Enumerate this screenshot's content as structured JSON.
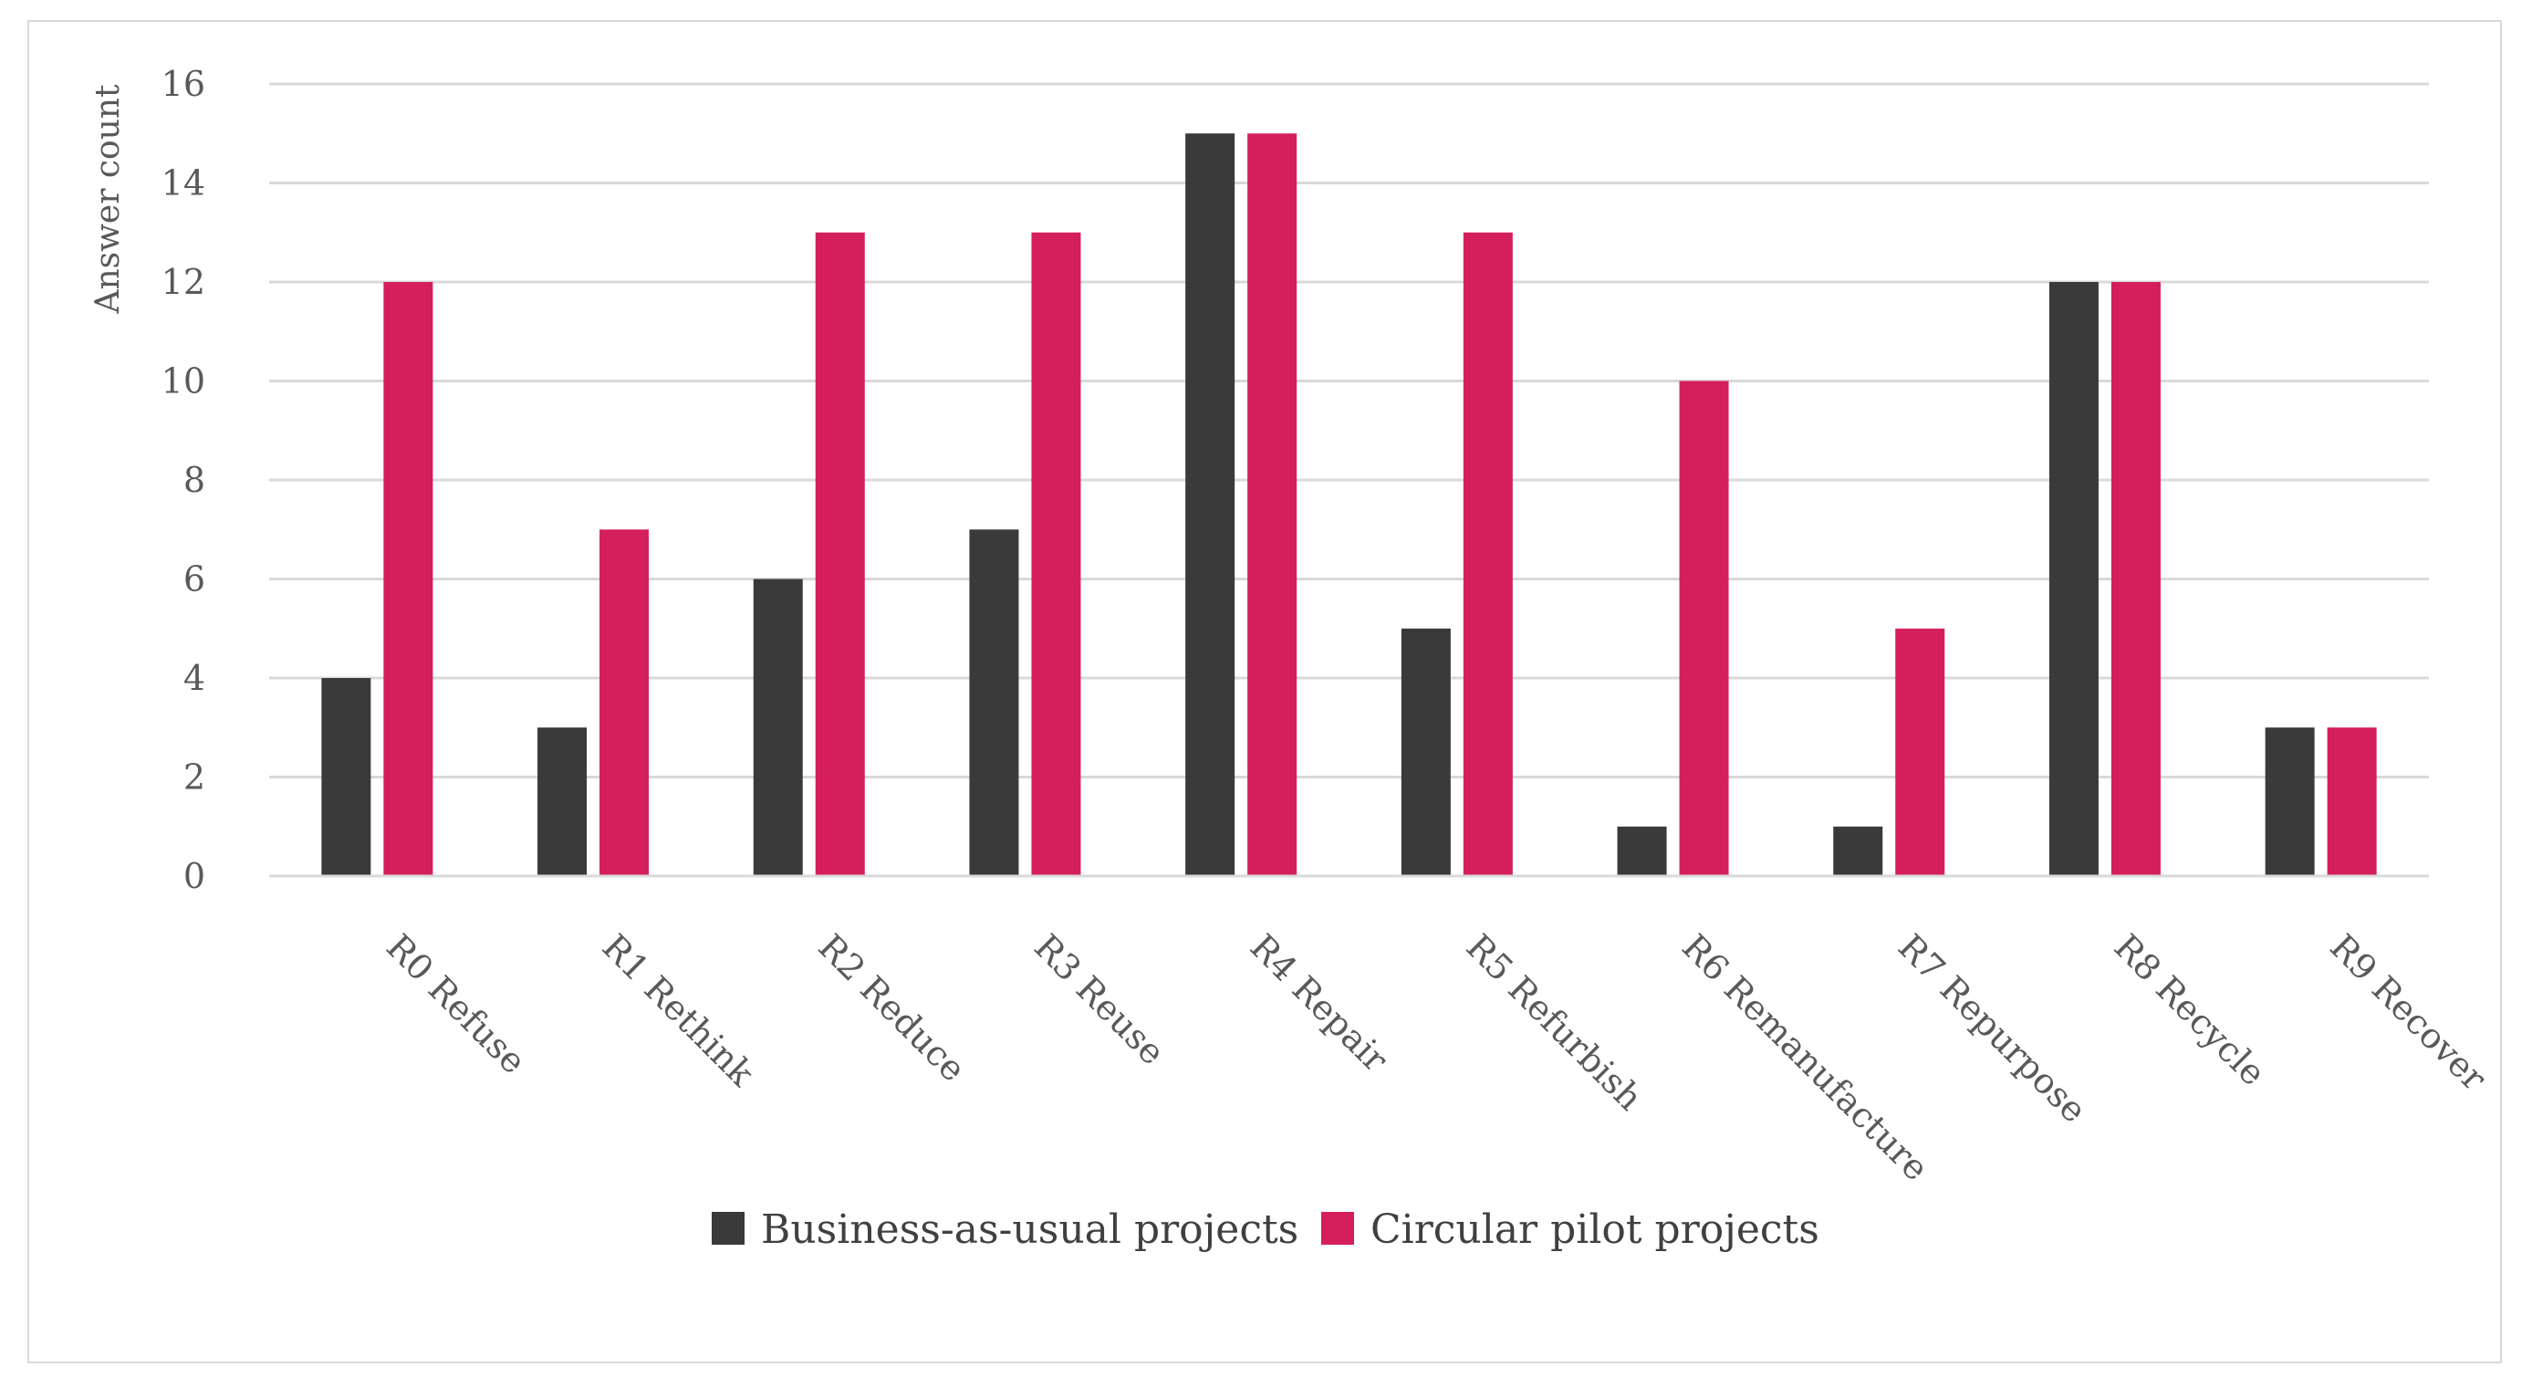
{
  "chart_data": {
    "type": "bar",
    "title": "",
    "xlabel": "",
    "ylabel": "Answer count",
    "ylim": [
      0,
      16
    ],
    "yticks": [
      0,
      2,
      4,
      6,
      8,
      10,
      12,
      14,
      16
    ],
    "grid": true,
    "legend_position": "bottom",
    "categories": [
      "R0 Refuse",
      "R1 Rethink",
      "R2 Reduce",
      "R3 Reuse",
      "R4 Repair",
      "R5 Refurbish",
      "R6 Remanufacture",
      "R7 Repurpose",
      "R8 Recycle",
      "R9 Recover"
    ],
    "series": [
      {
        "name": "Business-as-usual projects",
        "color": "#3a3a3a",
        "values": [
          4,
          3,
          6,
          7,
          15,
          5,
          1,
          1,
          12,
          3
        ]
      },
      {
        "name": "Circular pilot projects",
        "color": "#d41f5c",
        "values": [
          12,
          7,
          13,
          13,
          15,
          13,
          10,
          5,
          12,
          3
        ]
      }
    ]
  }
}
